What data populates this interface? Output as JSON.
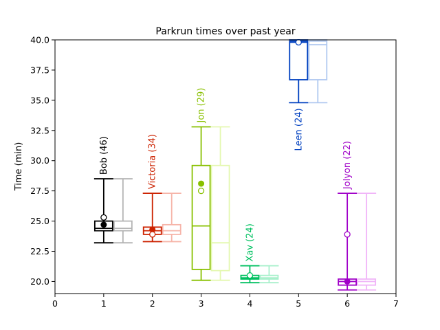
{
  "chart_data": {
    "type": "box",
    "title": "Parkrun times over past year",
    "xlabel": "",
    "ylabel": "Time (min)",
    "xlim": [
      0,
      7
    ],
    "ylim": [
      19.0,
      40.0
    ],
    "xticks": [
      "0",
      "1",
      "2",
      "3",
      "4",
      "5",
      "6",
      "7"
    ],
    "yticks": [
      "20.0",
      "22.5",
      "25.0",
      "27.5",
      "30.0",
      "32.5",
      "35.0",
      "37.5",
      "40.0"
    ],
    "grid": false,
    "series": [
      {
        "name": "Bob (46)",
        "x": 1,
        "color": "#000000",
        "light_color": "#b4b4b4",
        "dark": {
          "whisker_low": 23.2,
          "q1": 24.2,
          "median": 24.4,
          "q3": 25.0,
          "whisker_high": 28.5,
          "mean": 24.7,
          "outlier_or_last": 25.3
        },
        "light": {
          "whisker_low": 23.2,
          "q1": 24.2,
          "median": 24.4,
          "q3": 25.0,
          "whisker_high": 28.5
        }
      },
      {
        "name": "Victoria (34)",
        "x": 2,
        "color": "#cc2200",
        "light_color": "#f6b4a8",
        "dark": {
          "whisker_low": 23.3,
          "q1": 23.9,
          "median": 24.2,
          "q3": 24.5,
          "whisker_high": 27.3,
          "mean": 24.3,
          "outlier_or_last": 23.9
        },
        "light": {
          "whisker_low": 23.3,
          "q1": 23.9,
          "median": 24.2,
          "q3": 24.7,
          "whisker_high": 27.3
        }
      },
      {
        "name": "Jon (29)",
        "x": 3,
        "color": "#88c000",
        "light_color": "#e4f8b0",
        "dark": {
          "whisker_low": 20.1,
          "q1": 21.0,
          "median": 24.6,
          "q3": 29.6,
          "whisker_high": 32.8,
          "mean": 28.1,
          "outlier_or_last": 27.5
        },
        "light": {
          "whisker_low": 20.1,
          "q1": 20.9,
          "median": 23.2,
          "q3": 29.6,
          "whisker_high": 32.8
        }
      },
      {
        "name": "Xav (24)",
        "x": 4,
        "color": "#00c060",
        "light_color": "#a8f0cc",
        "dark": {
          "whisker_low": 19.9,
          "q1": 20.2,
          "median": 20.3,
          "q3": 20.5,
          "whisker_high": 21.3,
          "mean": 20.4,
          "outlier_or_last": 20.5
        },
        "light": {
          "whisker_low": 19.9,
          "q1": 20.2,
          "median": 20.3,
          "q3": 20.5,
          "whisker_high": 21.3
        }
      },
      {
        "name": "Leen (24)",
        "x": 5,
        "color": "#0040c0",
        "light_color": "#b0c8f0",
        "dark": {
          "whisker_low": 34.8,
          "q1": 36.7,
          "median": 39.8,
          "q3": 39.9,
          "whisker_high": 40.0,
          "mean": 39.8,
          "outlier_or_last": 39.8
        },
        "light": {
          "whisker_low": 34.8,
          "q1": 36.7,
          "median": 39.6,
          "q3": 39.9,
          "whisker_high": 40.0
        }
      },
      {
        "name": "Jolyon (22)",
        "x": 6,
        "color": "#a000c8",
        "light_color": "#f0b4f8",
        "dark": {
          "whisker_low": 19.3,
          "q1": 19.7,
          "median": 20.0,
          "q3": 20.2,
          "whisker_high": 27.3,
          "mean": 20.0,
          "outlier_or_last": 23.9
        },
        "light": {
          "whisker_low": 19.3,
          "q1": 19.7,
          "median": 20.0,
          "q3": 20.2,
          "whisker_high": 27.3
        }
      }
    ]
  }
}
